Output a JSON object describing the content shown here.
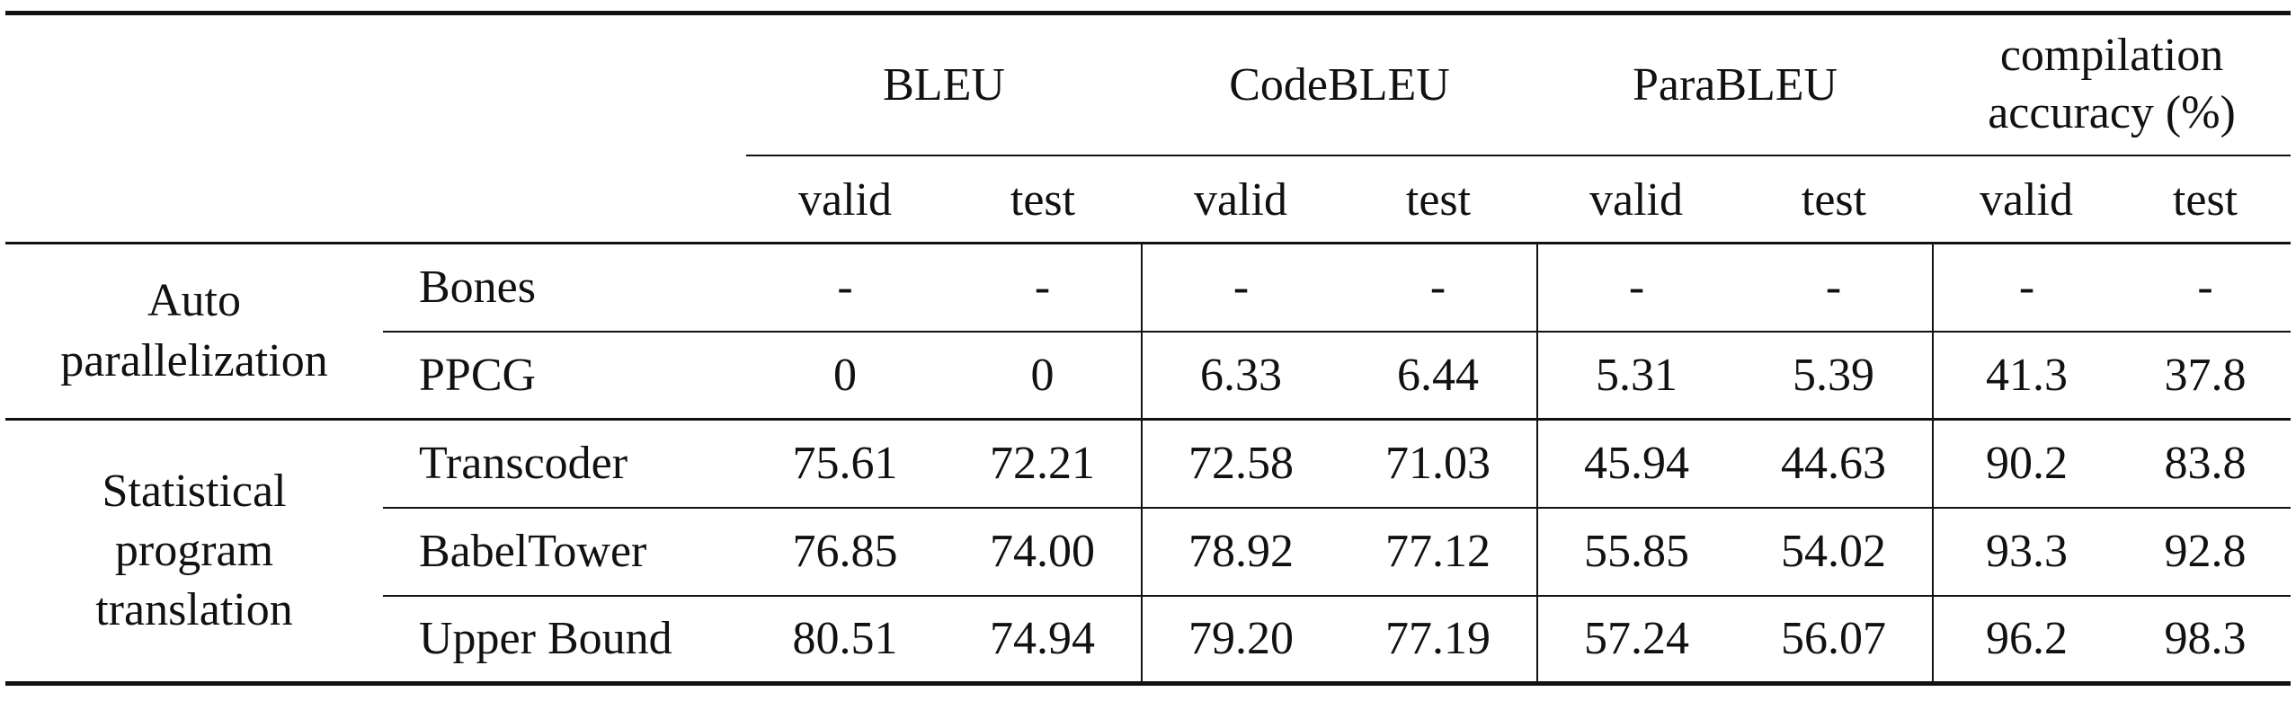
{
  "header": {
    "metrics": [
      {
        "label": "BLEU"
      },
      {
        "label": "CodeBLEU"
      },
      {
        "label": "ParaBLEU"
      },
      {
        "label_line1": "compilation",
        "label_line2": "accuracy (%)"
      }
    ],
    "sub": {
      "valid": "valid",
      "test": "test"
    }
  },
  "groups": [
    {
      "label_lines": [
        "Auto",
        "parallelization"
      ],
      "rows": [
        {
          "method": "Bones",
          "values": [
            "-",
            "-",
            "-",
            "-",
            "-",
            "-",
            "-",
            "-"
          ]
        },
        {
          "method": "PPCG",
          "values": [
            "0",
            "0",
            "6.33",
            "6.44",
            "5.31",
            "5.39",
            "41.3",
            "37.8"
          ]
        }
      ]
    },
    {
      "label_lines": [
        "Statistical",
        "program",
        "translation"
      ],
      "rows": [
        {
          "method": "Transcoder",
          "values": [
            "75.61",
            "72.21",
            "72.58",
            "71.03",
            "45.94",
            "44.63",
            "90.2",
            "83.8"
          ]
        },
        {
          "method": "BabelTower",
          "values": [
            "76.85",
            "74.00",
            "78.92",
            "77.12",
            "55.85",
            "54.02",
            "93.3",
            "92.8"
          ]
        },
        {
          "method": "Upper Bound",
          "values": [
            "80.51",
            "74.94",
            "79.20",
            "77.19",
            "57.24",
            "56.07",
            "96.2",
            "98.3"
          ]
        }
      ]
    }
  ]
}
